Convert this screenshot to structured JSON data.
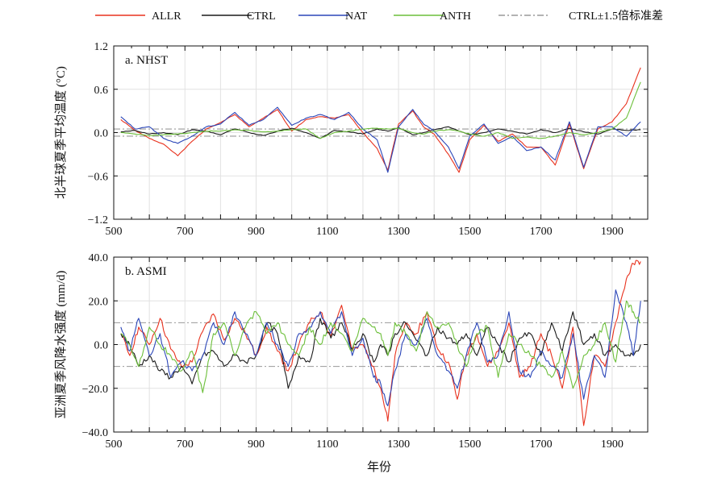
{
  "legend": [
    {
      "label": "ALLR",
      "color": "#e8321e",
      "dash": ""
    },
    {
      "label": "CTRL",
      "color": "#1a1a1a",
      "dash": ""
    },
    {
      "label": "NAT",
      "color": "#2b46b8",
      "dash": ""
    },
    {
      "label": "ANTH",
      "color": "#6cbf3a",
      "dash": ""
    },
    {
      "label": "CTRL±1.5倍标准差",
      "color": "#9a9a9a",
      "dash": "8,3,2,3"
    }
  ],
  "x_axis_label": "年份",
  "chart_data": [
    {
      "type": "line",
      "panel_label": "a. NHST",
      "ylabel": "北半球夏季平均温度 (°C)",
      "xlim": [
        500,
        2000
      ],
      "ylim": [
        -1.2,
        1.2
      ],
      "x_ticks": [
        500,
        700,
        900,
        1100,
        1300,
        1500,
        1700,
        1900
      ],
      "y_ticks": [
        -1.2,
        -0.6,
        0.0,
        0.6,
        1.2
      ],
      "y_tick_labels": [
        "−1.2",
        "−0.6",
        "0.0",
        "0.6",
        "1.2"
      ],
      "grid": true,
      "band": [
        -0.05,
        0.05
      ],
      "x": [
        520,
        560,
        600,
        640,
        680,
        720,
        760,
        800,
        840,
        880,
        920,
        960,
        1000,
        1040,
        1080,
        1120,
        1160,
        1200,
        1240,
        1270,
        1300,
        1340,
        1370,
        1400,
        1440,
        1470,
        1500,
        1540,
        1580,
        1620,
        1660,
        1700,
        1740,
        1780,
        1820,
        1860,
        1900,
        1940,
        1980
      ],
      "series": [
        {
          "name": "ALLR",
          "color": "#e8321e",
          "values": [
            0.18,
            0.03,
            -0.08,
            -0.16,
            -0.32,
            -0.12,
            0.05,
            0.14,
            0.25,
            0.08,
            0.2,
            0.32,
            0.02,
            0.18,
            0.22,
            0.2,
            0.25,
            0.0,
            -0.22,
            -0.52,
            0.12,
            0.3,
            0.08,
            -0.02,
            -0.3,
            -0.55,
            -0.1,
            0.1,
            -0.12,
            -0.02,
            -0.2,
            -0.2,
            -0.45,
            0.12,
            -0.5,
            0.05,
            0.15,
            0.4,
            0.9
          ]
        },
        {
          "name": "CTRL",
          "color": "#1a1a1a",
          "values": [
            0.01,
            0.03,
            -0.02,
            0.0,
            -0.03,
            0.04,
            0.02,
            -0.03,
            0.05,
            0.0,
            -0.04,
            0.02,
            0.06,
            0.0,
            -0.08,
            0.03,
            0.01,
            -0.02,
            0.05,
            0.02,
            0.07,
            -0.03,
            0.0,
            0.04,
            0.08,
            0.02,
            -0.03,
            0.0,
            0.05,
            0.02,
            -0.02,
            0.04,
            0.0,
            0.06,
            0.01,
            -0.02,
            0.05,
            0.03,
            0.04
          ]
        },
        {
          "name": "NAT",
          "color": "#2b46b8",
          "values": [
            0.22,
            0.05,
            0.08,
            -0.08,
            -0.15,
            -0.05,
            0.08,
            0.12,
            0.28,
            0.1,
            0.18,
            0.35,
            0.1,
            0.2,
            0.25,
            0.18,
            0.28,
            0.05,
            -0.1,
            -0.55,
            0.08,
            0.32,
            0.12,
            0.02,
            -0.2,
            -0.5,
            -0.05,
            0.12,
            -0.15,
            -0.05,
            -0.25,
            -0.2,
            -0.38,
            0.15,
            -0.48,
            0.08,
            0.08,
            -0.05,
            0.15
          ]
        },
        {
          "name": "ANTH",
          "color": "#6cbf3a",
          "values": [
            0.0,
            -0.02,
            -0.04,
            -0.03,
            -0.02,
            0.0,
            0.02,
            0.02,
            0.04,
            0.03,
            0.01,
            0.02,
            0.04,
            0.05,
            -0.08,
            0.0,
            0.02,
            0.05,
            0.06,
            0.05,
            0.06,
            0.0,
            -0.02,
            0.02,
            0.04,
            0.02,
            -0.02,
            -0.05,
            0.0,
            -0.08,
            -0.06,
            -0.08,
            -0.05,
            0.0,
            -0.03,
            0.0,
            0.05,
            0.2,
            0.7
          ]
        }
      ]
    },
    {
      "type": "line",
      "panel_label": "b. ASMI",
      "ylabel": "亚洲夏季风降水强度 (mm/d)",
      "xlim": [
        500,
        2000
      ],
      "ylim": [
        -40,
        40
      ],
      "x_ticks": [
        500,
        700,
        900,
        1100,
        1300,
        1500,
        1700,
        1900
      ],
      "y_ticks": [
        -40,
        -20,
        0,
        20,
        40
      ],
      "y_tick_labels": [
        "−40.0",
        "−20.0",
        "0.0",
        "20.0",
        "40.0"
      ],
      "grid": true,
      "band": [
        -10,
        10
      ],
      "x": [
        520,
        545,
        570,
        600,
        630,
        660,
        690,
        720,
        750,
        780,
        810,
        840,
        870,
        900,
        930,
        960,
        990,
        1020,
        1050,
        1080,
        1110,
        1140,
        1170,
        1200,
        1230,
        1250,
        1270,
        1290,
        1320,
        1350,
        1380,
        1410,
        1440,
        1465,
        1490,
        1520,
        1550,
        1580,
        1610,
        1640,
        1670,
        1700,
        1730,
        1760,
        1790,
        1820,
        1850,
        1880,
        1910,
        1940,
        1960,
        1980
      ],
      "series": [
        {
          "name": "ALLR",
          "color": "#e8321e",
          "values": [
            5,
            -5,
            8,
            0,
            12,
            -2,
            -10,
            -8,
            6,
            14,
            2,
            12,
            5,
            -5,
            8,
            -3,
            -12,
            0,
            10,
            15,
            4,
            18,
            -3,
            0,
            -10,
            -20,
            -35,
            -5,
            10,
            5,
            15,
            -2,
            -8,
            -25,
            -5,
            5,
            -10,
            -3,
            10,
            -15,
            -10,
            5,
            -5,
            -20,
            8,
            -37,
            -5,
            -10,
            10,
            30,
            37,
            38
          ]
        },
        {
          "name": "CTRL",
          "color": "#1a1a1a",
          "values": [
            5,
            0,
            -10,
            -5,
            -12,
            -15,
            -10,
            -18,
            -5,
            -3,
            -10,
            -5,
            -8,
            -5,
            10,
            5,
            -20,
            -5,
            -8,
            12,
            3,
            10,
            -2,
            5,
            -8,
            0,
            -5,
            5,
            10,
            2,
            -5,
            8,
            3,
            0,
            5,
            -5,
            8,
            0,
            -8,
            3,
            5,
            -5,
            10,
            -3,
            15,
            0,
            5,
            -5,
            0,
            -5,
            -5,
            0
          ]
        },
        {
          "name": "NAT",
          "color": "#2b46b8",
          "values": [
            8,
            -3,
            12,
            -5,
            5,
            -15,
            -8,
            -12,
            -5,
            10,
            0,
            15,
            5,
            -5,
            10,
            0,
            -10,
            5,
            8,
            15,
            5,
            15,
            -5,
            3,
            -15,
            -18,
            -28,
            -12,
            5,
            0,
            12,
            -5,
            -12,
            -20,
            -5,
            10,
            -8,
            -5,
            15,
            -12,
            -15,
            -3,
            -10,
            -15,
            5,
            -25,
            -5,
            -15,
            25,
            10,
            -5,
            20
          ]
        },
        {
          "name": "ANTH",
          "color": "#6cbf3a",
          "values": [
            5,
            0,
            -10,
            8,
            0,
            -5,
            -12,
            -3,
            -22,
            5,
            10,
            -5,
            8,
            15,
            5,
            10,
            0,
            -5,
            8,
            0,
            10,
            5,
            -3,
            12,
            8,
            5,
            -5,
            10,
            5,
            -3,
            15,
            8,
            10,
            0,
            -10,
            5,
            8,
            -15,
            5,
            0,
            -5,
            -10,
            -15,
            -3,
            -20,
            -5,
            0,
            10,
            -8,
            20,
            15,
            10
          ]
        }
      ]
    }
  ]
}
